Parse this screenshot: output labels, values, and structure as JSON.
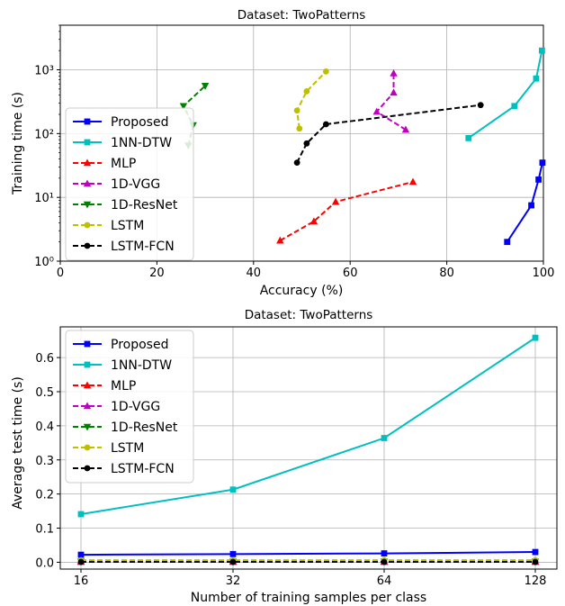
{
  "chart_data": [
    {
      "type": "line",
      "title": "Dataset: TwoPatterns",
      "xlabel": "Accuracy (%)",
      "ylabel": "Training time (s)",
      "xlim": [
        0,
        100
      ],
      "ylim": [
        1,
        5000
      ],
      "yscale": "log",
      "x_ticks": [
        "0",
        "20",
        "40",
        "60",
        "80",
        "100"
      ],
      "y_ticks": [
        "10⁰",
        "10¹",
        "10²",
        "10³"
      ],
      "grid": true,
      "legend_position": "lower-left",
      "series": [
        {
          "name": "Proposed",
          "color": "#0000ff",
          "dashed": false,
          "marker": "square",
          "points": [
            [
              92.5,
              2.0
            ],
            [
              97.5,
              7.5
            ],
            [
              99,
              19
            ],
            [
              99.8,
              35
            ]
          ]
        },
        {
          "name": "1NN-DTW",
          "color": "#00bfbf",
          "dashed": false,
          "marker": "square",
          "points": [
            [
              84.5,
              85
            ],
            [
              94,
              270
            ],
            [
              98.5,
              730
            ],
            [
              99.7,
              2000
            ]
          ]
        },
        {
          "name": "MLP",
          "color": "#ff0000",
          "dashed": true,
          "marker": "triangle-up",
          "points": [
            [
              45.5,
              2.1
            ],
            [
              52.5,
              4.2
            ],
            [
              57,
              8.5
            ],
            [
              73,
              17.5
            ]
          ]
        },
        {
          "name": "1D-VGG",
          "color": "#bf00bf",
          "dashed": true,
          "marker": "triangle-up",
          "points": [
            [
              71.5,
              115
            ],
            [
              65.5,
              220
            ],
            [
              69,
              440
            ],
            [
              69,
              880
            ]
          ]
        },
        {
          "name": "1D-ResNet",
          "color": "#008000",
          "dashed": true,
          "marker": "triangle-down",
          "points": [
            [
              26.5,
              65
            ],
            [
              27.5,
              135
            ],
            [
              25.5,
              270
            ],
            [
              30,
              560
            ]
          ]
        },
        {
          "name": "LSTM",
          "color": "#bfbf00",
          "dashed": true,
          "marker": "circle",
          "points": [
            [
              49.5,
              120
            ],
            [
              49,
              230
            ],
            [
              51,
              460
            ],
            [
              55,
              940
            ]
          ]
        },
        {
          "name": "LSTM-FCN",
          "color": "#000000",
          "dashed": true,
          "marker": "circle",
          "points": [
            [
              49,
              35
            ],
            [
              51,
              70
            ],
            [
              55,
              140
            ],
            [
              87,
              280
            ]
          ]
        }
      ]
    },
    {
      "type": "line",
      "title": "Dataset: TwoPatterns",
      "xlabel": "Number of training samples per class",
      "ylabel": "Average test time (s)",
      "categories": [
        "16",
        "32",
        "64",
        "128"
      ],
      "ylim": [
        -0.02,
        0.69
      ],
      "y_ticks": [
        "0.0",
        "0.1",
        "0.2",
        "0.3",
        "0.4",
        "0.5",
        "0.6"
      ],
      "grid": true,
      "legend_position": "upper-left",
      "series": [
        {
          "name": "Proposed",
          "color": "#0000ff",
          "dashed": false,
          "marker": "square",
          "values": [
            0.022,
            0.024,
            0.026,
            0.03
          ]
        },
        {
          "name": "1NN-DTW",
          "color": "#00bfbf",
          "dashed": false,
          "marker": "square",
          "values": [
            0.141,
            0.213,
            0.364,
            0.658
          ]
        },
        {
          "name": "MLP",
          "color": "#ff0000",
          "dashed": true,
          "marker": "triangle-up",
          "values": [
            0.001,
            0.001,
            0.001,
            0.001
          ]
        },
        {
          "name": "1D-VGG",
          "color": "#bf00bf",
          "dashed": true,
          "marker": "triangle-up",
          "values": [
            0.003,
            0.003,
            0.003,
            0.003
          ]
        },
        {
          "name": "1D-ResNet",
          "color": "#008000",
          "dashed": true,
          "marker": "triangle-down",
          "values": [
            0.002,
            0.002,
            0.002,
            0.002
          ]
        },
        {
          "name": "LSTM",
          "color": "#bfbf00",
          "dashed": true,
          "marker": "circle",
          "values": [
            0.006,
            0.006,
            0.006,
            0.006
          ]
        },
        {
          "name": "LSTM-FCN",
          "color": "#000000",
          "dashed": true,
          "marker": "circle",
          "values": [
            0.001,
            0.001,
            0.001,
            0.001
          ]
        }
      ]
    }
  ]
}
